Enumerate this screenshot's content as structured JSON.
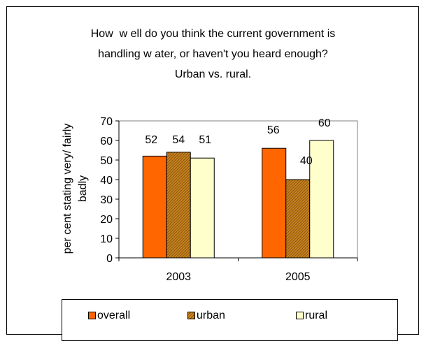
{
  "chart_data": {
    "type": "bar",
    "title_lines": [
      "How  w ell do you think the current government is",
      "handling w ater, or haven't you heard enough?",
      "Urban vs. rural."
    ],
    "xlabel": "",
    "ylabel_lines": [
      "per cent stating very/ fairly",
      "badly"
    ],
    "categories": [
      "2003",
      "2005"
    ],
    "series": [
      {
        "name": "overall",
        "values": [
          52,
          56
        ],
        "color": "#FF6600",
        "pattern": "solid"
      },
      {
        "name": "urban",
        "values": [
          54,
          40
        ],
        "color": "#C8841E",
        "pattern": "hatched"
      },
      {
        "name": "rural",
        "values": [
          51,
          60
        ],
        "color": "#FFFFCC",
        "pattern": "solid"
      }
    ],
    "ylim": [
      0,
      70
    ],
    "yticks": [
      "0",
      "10",
      "20",
      "30",
      "40",
      "50",
      "60",
      "70"
    ],
    "data_labels": true,
    "grid": false,
    "legend_position": "bottom"
  }
}
